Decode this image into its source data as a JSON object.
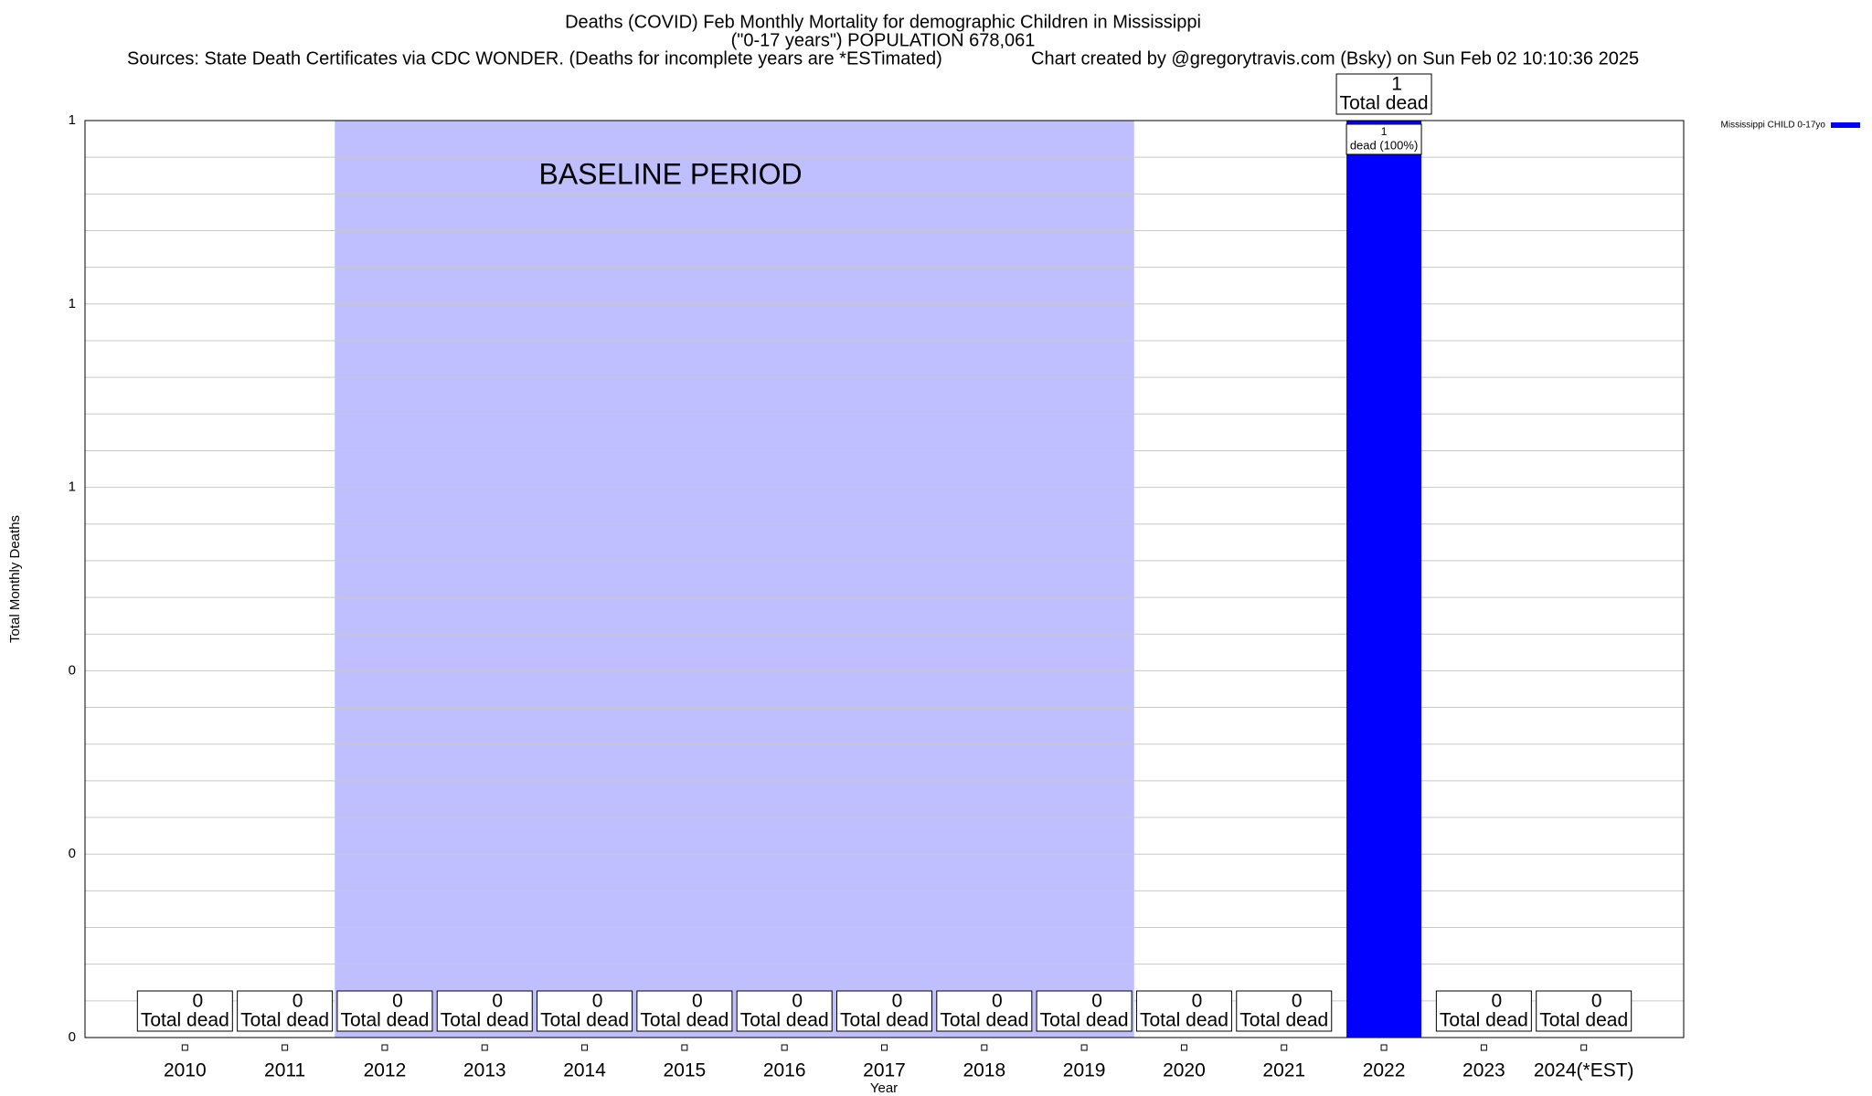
{
  "chart_data": {
    "type": "bar",
    "title": "Deaths (COVID) Feb Monthly Mortality for demographic Children in Mississippi",
    "subtitle": "(\"0-17 years\") POPULATION 678,061",
    "sources": "Sources: State Death Certificates via CDC WONDER. (Deaths for incomplete years are *ESTimated)",
    "credit": "Chart created by @gregorytravis.com (Bsky) on Sun Feb 02 10:10:36 2025",
    "x_label": "Year",
    "y_label": "Total Monthly Deaths",
    "categories": [
      "2010",
      "2011",
      "2012",
      "2013",
      "2014",
      "2015",
      "2016",
      "2017",
      "2018",
      "2019",
      "2020",
      "2021",
      "2022",
      "2023",
      "2024(*EST)"
    ],
    "series": [
      {
        "name": "Mississippi CHILD 0-17yo",
        "color": "#0000ff",
        "values": [
          0,
          0,
          0,
          0,
          0,
          0,
          0,
          0,
          0,
          0,
          0,
          0,
          1,
          0,
          0
        ],
        "segment_labels": [
          null,
          null,
          null,
          null,
          null,
          null,
          null,
          null,
          null,
          null,
          null,
          null,
          "dead (100%)",
          null,
          null
        ]
      }
    ],
    "total_label": "Total dead",
    "baseline": {
      "label": "BASELINE PERIOD",
      "start": "2012",
      "end": "2019",
      "color": "#bfbfff"
    },
    "ylim": [
      0,
      1
    ],
    "yticks": [
      {
        "value": 0,
        "label": "0"
      },
      {
        "value": 0.2,
        "label": "0"
      },
      {
        "value": 0.4,
        "label": "0"
      },
      {
        "value": 0.6,
        "label": "1"
      },
      {
        "value": 0.8,
        "label": "1"
      },
      {
        "value": 1,
        "label": "1"
      }
    ],
    "minor_yticks": [
      0.04,
      0.08,
      0.12,
      0.16,
      0.24,
      0.28,
      0.32,
      0.36,
      0.44,
      0.48,
      0.52,
      0.56,
      0.64,
      0.68,
      0.72,
      0.76,
      0.84,
      0.88,
      0.92,
      0.96
    ],
    "grid": true,
    "legend": "top-right"
  }
}
